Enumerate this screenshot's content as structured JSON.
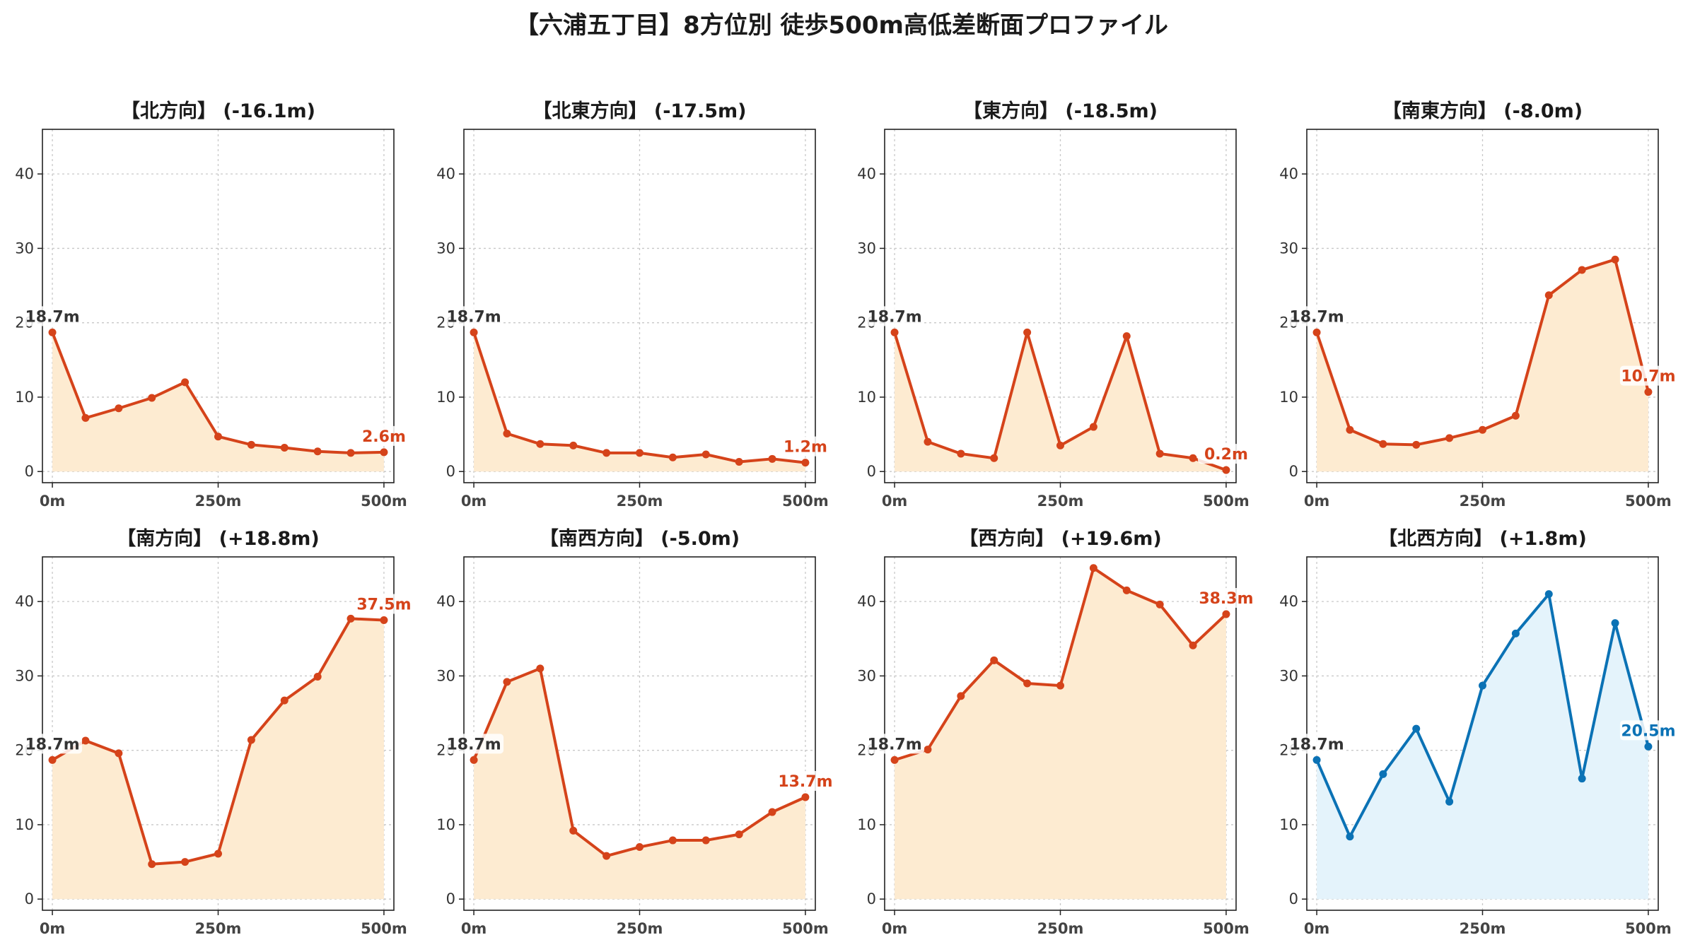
{
  "title": "【六浦五丁目】8方位別 徒歩500m高低差断面プロファイル",
  "chart_data": [
    {
      "type": "line",
      "title": "【北方向】 (-16.1m)",
      "x": [
        0,
        50,
        100,
        150,
        200,
        250,
        300,
        350,
        400,
        450,
        500
      ],
      "values": [
        18.7,
        7.2,
        8.5,
        9.9,
        12.0,
        4.7,
        3.6,
        3.2,
        2.7,
        2.5,
        2.6
      ],
      "start_label": "18.7m",
      "end_label": "2.6m",
      "color": "#d5431a",
      "fill": "#fdebd1",
      "xticks": [
        "0m",
        "250m",
        "500m"
      ],
      "yticks": [
        "0",
        "10",
        "20",
        "30",
        "40"
      ],
      "ylim": [
        -1.5,
        46
      ],
      "grid": true
    },
    {
      "type": "line",
      "title": "【北東方向】 (-17.5m)",
      "x": [
        0,
        50,
        100,
        150,
        200,
        250,
        300,
        350,
        400,
        450,
        500
      ],
      "values": [
        18.7,
        5.1,
        3.7,
        3.5,
        2.5,
        2.5,
        1.9,
        2.3,
        1.3,
        1.7,
        1.2
      ],
      "start_label": "18.7m",
      "end_label": "1.2m",
      "color": "#d5431a",
      "fill": "#fdebd1",
      "xticks": [
        "0m",
        "250m",
        "500m"
      ],
      "yticks": [
        "0",
        "10",
        "20",
        "30",
        "40"
      ],
      "ylim": [
        -1.5,
        46
      ],
      "grid": true
    },
    {
      "type": "line",
      "title": "【東方向】 (-18.5m)",
      "x": [
        0,
        50,
        100,
        150,
        200,
        250,
        300,
        350,
        400,
        450,
        500
      ],
      "values": [
        18.7,
        4.0,
        2.4,
        1.8,
        18.7,
        3.5,
        6.0,
        18.2,
        2.4,
        1.8,
        0.2
      ],
      "start_label": "18.7m",
      "end_label": "0.2m",
      "color": "#d5431a",
      "fill": "#fdebd1",
      "xticks": [
        "0m",
        "250m",
        "500m"
      ],
      "yticks": [
        "0",
        "10",
        "20",
        "30",
        "40"
      ],
      "ylim": [
        -1.5,
        46
      ],
      "grid": true
    },
    {
      "type": "line",
      "title": "【南東方向】 (-8.0m)",
      "x": [
        0,
        50,
        100,
        150,
        200,
        250,
        300,
        350,
        400,
        450,
        500
      ],
      "values": [
        18.7,
        5.6,
        3.7,
        3.6,
        4.5,
        5.6,
        7.5,
        23.7,
        27.1,
        28.5,
        10.7
      ],
      "start_label": "18.7m",
      "end_label": "10.7m",
      "color": "#d5431a",
      "fill": "#fdebd1",
      "xticks": [
        "0m",
        "250m",
        "500m"
      ],
      "yticks": [
        "0",
        "10",
        "20",
        "30",
        "40"
      ],
      "ylim": [
        -1.5,
        46
      ],
      "grid": true
    },
    {
      "type": "line",
      "title": "【南方向】 (+18.8m)",
      "x": [
        0,
        50,
        100,
        150,
        200,
        250,
        300,
        350,
        400,
        450,
        500
      ],
      "values": [
        18.7,
        21.3,
        19.6,
        4.7,
        5.0,
        6.1,
        21.4,
        26.7,
        29.9,
        37.7,
        37.5
      ],
      "start_label": "18.7m",
      "end_label": "37.5m",
      "color": "#d5431a",
      "fill": "#fdebd1",
      "xticks": [
        "0m",
        "250m",
        "500m"
      ],
      "yticks": [
        "0",
        "10",
        "20",
        "30",
        "40"
      ],
      "ylim": [
        -1.5,
        46
      ],
      "grid": true
    },
    {
      "type": "line",
      "title": "【南西方向】 (-5.0m)",
      "x": [
        0,
        50,
        100,
        150,
        200,
        250,
        300,
        350,
        400,
        450,
        500
      ],
      "values": [
        18.7,
        29.2,
        31.0,
        9.2,
        5.8,
        7.0,
        7.9,
        7.9,
        8.7,
        11.7,
        13.7
      ],
      "start_label": "18.7m",
      "end_label": "13.7m",
      "color": "#d5431a",
      "fill": "#fdebd1",
      "xticks": [
        "0m",
        "250m",
        "500m"
      ],
      "yticks": [
        "0",
        "10",
        "20",
        "30",
        "40"
      ],
      "ylim": [
        -1.5,
        46
      ],
      "grid": true
    },
    {
      "type": "line",
      "title": "【西方向】 (+19.6m)",
      "x": [
        0,
        50,
        100,
        150,
        200,
        250,
        300,
        350,
        400,
        450,
        500
      ],
      "values": [
        18.7,
        20.1,
        27.3,
        32.1,
        29.0,
        28.7,
        44.5,
        41.5,
        39.6,
        34.1,
        38.3
      ],
      "start_label": "18.7m",
      "end_label": "38.3m",
      "color": "#d5431a",
      "fill": "#fdebd1",
      "xticks": [
        "0m",
        "250m",
        "500m"
      ],
      "yticks": [
        "0",
        "10",
        "20",
        "30",
        "40"
      ],
      "ylim": [
        -1.5,
        46
      ],
      "grid": true
    },
    {
      "type": "line",
      "title": "【北西方向】 (+1.8m)",
      "x": [
        0,
        50,
        100,
        150,
        200,
        250,
        300,
        350,
        400,
        450,
        500
      ],
      "values": [
        18.7,
        8.4,
        16.8,
        22.9,
        13.1,
        28.7,
        35.7,
        41.0,
        16.2,
        37.1,
        20.5
      ],
      "start_label": "18.7m",
      "end_label": "20.5m",
      "color": "#0b72b5",
      "fill": "#e4f3fb",
      "xticks": [
        "0m",
        "250m",
        "500m"
      ],
      "yticks": [
        "0",
        "10",
        "20",
        "30",
        "40"
      ],
      "ylim": [
        -1.5,
        46
      ],
      "grid": true
    }
  ]
}
